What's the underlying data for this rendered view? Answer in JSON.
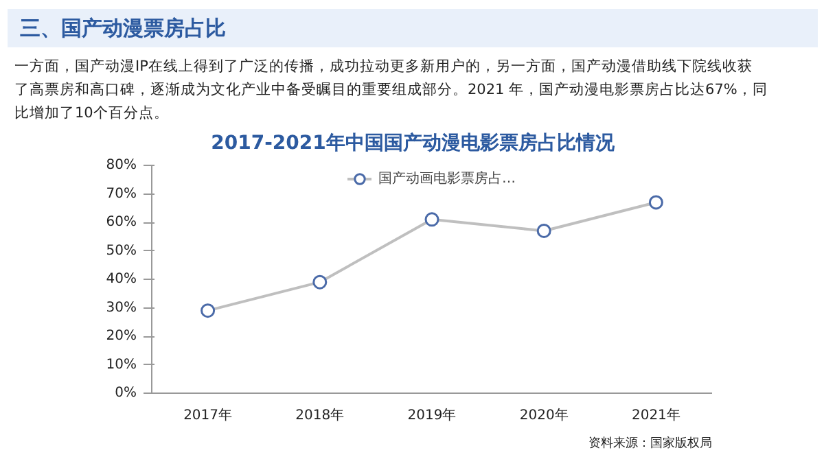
{
  "chart_data": {
    "type": "line",
    "title": "2017-2021年中国国产动漫电影票房占比情况",
    "annotations": [
      "三、国产动漫票房占比",
      "一方面，国产动漫IP在线上得到了广泛的传播，成功拉动更多新用户的，另一方面，国产动漫借助线下院线收获了高票房和高口碑，逐渐成为文化产业中备受瞩目的重要组成部分。2021 年，国产动漫电影票房占比达67%，同比增加了10个百分点。",
      "资料来源：国家版权局"
    ],
    "categories": [
      "2017年",
      "2018年",
      "2019年",
      "2020年",
      "2021年"
    ],
    "series": [
      {
        "name": "国产动画电影票房占…",
        "color": "#bfbfbf",
        "values": [
          29,
          39,
          61,
          57,
          67
        ]
      }
    ],
    "ylim": [
      0,
      80
    ],
    "yticks": [
      {
        "value": 0,
        "label": "0%"
      },
      {
        "value": 10,
        "label": "10%"
      },
      {
        "value": 20,
        "label": "20%"
      },
      {
        "value": 30,
        "label": "30%"
      },
      {
        "value": 40,
        "label": "40%"
      },
      {
        "value": 50,
        "label": "50%"
      },
      {
        "value": 60,
        "label": "60%"
      },
      {
        "value": 70,
        "label": "70%"
      },
      {
        "value": 80,
        "label": "80%"
      }
    ],
    "grid": false,
    "legend": "top",
    "marker": "circle",
    "line_style": "solid"
  }
}
